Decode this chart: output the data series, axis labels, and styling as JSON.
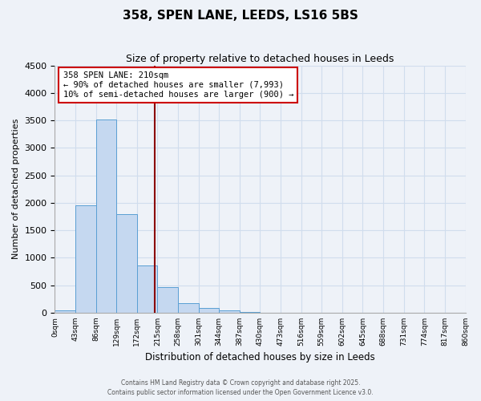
{
  "title": "358, SPEN LANE, LEEDS, LS16 5BS",
  "subtitle": "Size of property relative to detached houses in Leeds",
  "xlabel": "Distribution of detached houses by size in Leeds",
  "ylabel": "Number of detached properties",
  "bar_values": [
    40,
    1950,
    3510,
    1800,
    860,
    460,
    175,
    90,
    50,
    15,
    0,
    0,
    0,
    0,
    0,
    0,
    0,
    0,
    0,
    0
  ],
  "bin_labels": [
    "0sqm",
    "43sqm",
    "86sqm",
    "129sqm",
    "172sqm",
    "215sqm",
    "258sqm",
    "301sqm",
    "344sqm",
    "387sqm",
    "430sqm",
    "473sqm",
    "516sqm",
    "559sqm",
    "602sqm",
    "645sqm",
    "688sqm",
    "731sqm",
    "774sqm",
    "817sqm",
    "860sqm"
  ],
  "bar_color": "#c5d8f0",
  "bar_edge_color": "#5a9fd4",
  "vline_x": 4.88,
  "vline_color": "#8b0000",
  "annotation_title": "358 SPEN LANE: 210sqm",
  "annotation_line1": "← 90% of detached houses are smaller (7,993)",
  "annotation_line2": "10% of semi-detached houses are larger (900) →",
  "annotation_box_color": "#ffffff",
  "annotation_box_edge": "#cc0000",
  "ylim": [
    0,
    4500
  ],
  "yticks": [
    0,
    500,
    1000,
    1500,
    2000,
    2500,
    3000,
    3500,
    4000,
    4500
  ],
  "grid_color": "#d0dded",
  "bg_color": "#eef2f8",
  "footer1": "Contains HM Land Registry data © Crown copyright and database right 2025.",
  "footer2": "Contains public sector information licensed under the Open Government Licence v3.0."
}
